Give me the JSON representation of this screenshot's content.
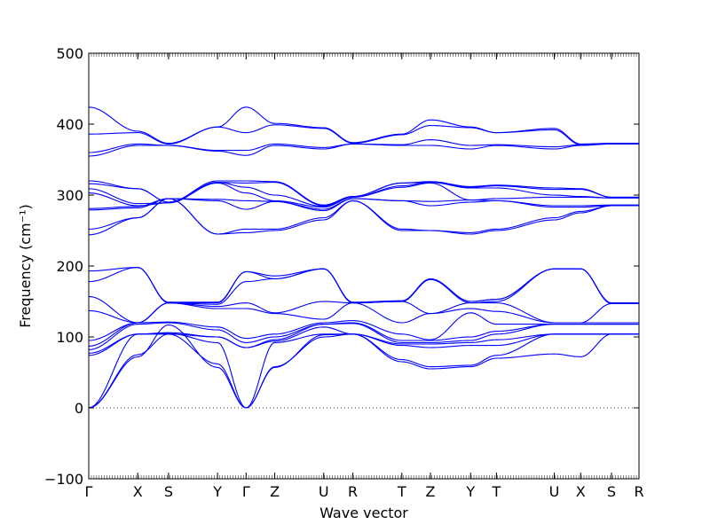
{
  "chart_data": {
    "type": "line",
    "title": "",
    "xlabel": "Wave vector",
    "ylabel": "Frequency (cm⁻¹)",
    "ylim": [
      -100,
      500
    ],
    "yticks": [
      -100,
      0,
      100,
      200,
      300,
      400,
      500
    ],
    "grid": false,
    "zero_line": {
      "y": 0,
      "style": "dotted"
    },
    "series_color": "#0000ff",
    "kpath": [
      {
        "label": "Γ",
        "x": 0.0
      },
      {
        "label": "X",
        "x": 0.089
      },
      {
        "label": "S",
        "x": 0.145
      },
      {
        "label": "Y",
        "x": 0.234
      },
      {
        "label": "Γ",
        "x": 0.286
      },
      {
        "label": "Z",
        "x": 0.338
      },
      {
        "label": "U",
        "x": 0.427
      },
      {
        "label": "R",
        "x": 0.48
      },
      {
        "label": "T",
        "x": 0.569
      },
      {
        "label": "Z",
        "x": 0.621
      },
      {
        "label": "Y",
        "x": 0.694
      },
      {
        "label": "T",
        "x": 0.741
      },
      {
        "label": "U",
        "x": 0.846
      },
      {
        "label": "X",
        "x": 0.894
      },
      {
        "label": "S",
        "x": 0.95
      },
      {
        "label": "R",
        "x": 1.0
      }
    ],
    "bands_at_kpoints": [
      [
        0,
        72,
        117,
        57,
        0,
        58,
        100,
        104,
        65,
        55,
        58,
        70,
        76,
        72,
        104,
        104
      ],
      [
        0,
        75,
        104,
        62,
        0,
        57,
        103,
        104,
        68,
        58,
        60,
        74,
        104,
        104,
        104,
        104
      ],
      [
        0,
        104,
        105,
        92,
        0,
        92,
        104,
        104,
        88,
        85,
        88,
        88,
        104,
        104,
        104,
        104
      ],
      [
        74,
        104,
        104,
        100,
        85,
        94,
        114,
        104,
        90,
        90,
        92,
        96,
        104,
        104,
        104,
        104
      ],
      [
        77,
        104,
        106,
        100,
        85,
        96,
        118,
        119,
        92,
        92,
        95,
        104,
        118,
        118,
        118,
        118
      ],
      [
        82,
        118,
        120,
        110,
        92,
        100,
        118,
        120,
        95,
        95,
        100,
        108,
        118,
        118,
        118,
        118
      ],
      [
        87,
        120,
        121,
        114,
        98,
        104,
        120,
        123,
        104,
        96,
        134,
        118,
        118,
        118,
        118,
        118
      ],
      [
        95,
        120,
        148,
        140,
        140,
        133,
        125,
        148,
        120,
        133,
        140,
        136,
        120,
        120,
        120,
        120
      ],
      [
        137,
        120,
        148,
        143,
        148,
        134,
        150,
        148,
        150,
        133,
        148,
        148,
        120,
        120,
        147,
        147
      ],
      [
        157,
        120,
        148,
        146,
        178,
        182,
        196,
        148,
        150,
        181,
        148,
        150,
        196,
        196,
        147,
        147
      ],
      [
        178,
        198,
        148,
        148,
        192,
        182,
        196,
        148,
        150,
        181,
        150,
        153,
        196,
        196,
        147,
        147
      ],
      [
        193,
        198,
        149,
        149,
        192,
        186,
        196,
        149,
        151,
        182,
        150,
        153,
        196,
        196,
        148,
        148
      ],
      [
        244,
        268,
        295,
        245,
        247,
        250,
        265,
        292,
        250,
        250,
        245,
        250,
        265,
        275,
        285,
        285
      ],
      [
        252,
        268,
        295,
        245,
        252,
        252,
        268,
        292,
        252,
        250,
        247,
        252,
        268,
        277,
        285,
        285
      ],
      [
        279,
        282,
        295,
        292,
        280,
        291,
        278,
        295,
        292,
        285,
        290,
        292,
        283,
        283,
        285,
        285
      ],
      [
        281,
        284,
        295,
        294,
        292,
        291,
        280,
        295,
        292,
        291,
        293,
        292,
        285,
        285,
        286,
        286
      ],
      [
        303,
        285,
        289,
        317,
        303,
        292,
        283,
        297,
        311,
        317,
        293,
        295,
        297,
        297,
        296,
        296
      ],
      [
        309,
        288,
        289,
        318,
        311,
        300,
        284,
        297,
        313,
        318,
        310,
        310,
        300,
        298,
        296,
        296
      ],
      [
        316,
        309,
        290,
        318,
        317,
        318,
        285,
        298,
        317,
        318,
        311,
        313,
        308,
        308,
        297,
        297
      ],
      [
        320,
        309,
        290,
        320,
        320,
        319,
        286,
        298,
        317,
        319,
        312,
        314,
        310,
        309,
        297,
        297
      ],
      [
        355,
        370,
        370,
        362,
        356,
        370,
        365,
        372,
        370,
        370,
        365,
        370,
        365,
        370,
        372,
        372
      ],
      [
        360,
        372,
        370,
        363,
        363,
        372,
        367,
        372,
        371,
        378,
        370,
        371,
        368,
        371,
        372,
        372
      ],
      [
        386,
        388,
        372,
        396,
        388,
        399,
        394,
        373,
        385,
        398,
        395,
        388,
        392,
        371,
        373,
        373
      ],
      [
        424,
        390,
        373,
        396,
        424,
        401,
        395,
        374,
        386,
        406,
        396,
        388,
        394,
        372,
        373,
        373
      ]
    ]
  }
}
